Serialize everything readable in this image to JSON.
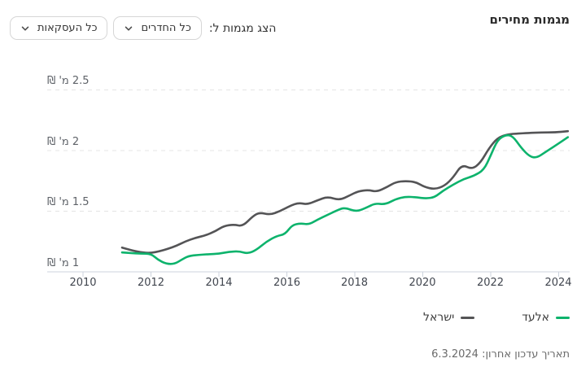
{
  "header": {
    "title": "מגמות מחירים"
  },
  "controls": {
    "label": "הצג מגמות ל:",
    "rooms_dropdown": {
      "value": "כל החדרים",
      "icon": "chevron-down-icon"
    },
    "transactions_dropdown": {
      "value": "כל העסקאות",
      "icon": "chevron-down-icon"
    }
  },
  "chart_data": {
    "type": "line",
    "title": "מגמות מחירים",
    "grid": "horizontal-dashed",
    "legend_position": "bottom-right",
    "x_range": [
      2009.05,
      2024.35
    ],
    "y_range": [
      1.0,
      2.5
    ],
    "x_ticks": [
      2010,
      2012,
      2014,
      2016,
      2018,
      2020,
      2022,
      2024
    ],
    "y_ticks": [
      {
        "label": "2.5 מ' ₪",
        "value": 2.5
      },
      {
        "label": "2 מ' ₪",
        "value": 2.0
      },
      {
        "label": "1.5 מ' ₪",
        "value": 1.5
      },
      {
        "label": "1 מ' ₪",
        "value": 1.0
      }
    ],
    "axis_color": "#ccd3dc",
    "gridline_color": "#e4e4e4",
    "series": [
      {
        "name": "אלעד",
        "color": "#0db36c",
        "points": [
          [
            2011.15,
            1.16
          ],
          [
            2011.4,
            1.155
          ],
          [
            2011.7,
            1.15
          ],
          [
            2012.0,
            1.15
          ],
          [
            2012.2,
            1.1
          ],
          [
            2012.45,
            1.065
          ],
          [
            2012.7,
            1.065
          ],
          [
            2012.9,
            1.1
          ],
          [
            2013.1,
            1.13
          ],
          [
            2013.4,
            1.14
          ],
          [
            2013.7,
            1.145
          ],
          [
            2014.0,
            1.15
          ],
          [
            2014.3,
            1.165
          ],
          [
            2014.6,
            1.17
          ],
          [
            2014.85,
            1.15
          ],
          [
            2015.1,
            1.18
          ],
          [
            2015.4,
            1.25
          ],
          [
            2015.7,
            1.295
          ],
          [
            2015.95,
            1.31
          ],
          [
            2016.15,
            1.385
          ],
          [
            2016.4,
            1.4
          ],
          [
            2016.65,
            1.39
          ],
          [
            2016.9,
            1.43
          ],
          [
            2017.2,
            1.47
          ],
          [
            2017.5,
            1.51
          ],
          [
            2017.7,
            1.53
          ],
          [
            2018.05,
            1.495
          ],
          [
            2018.35,
            1.53
          ],
          [
            2018.6,
            1.565
          ],
          [
            2018.9,
            1.555
          ],
          [
            2019.2,
            1.6
          ],
          [
            2019.5,
            1.62
          ],
          [
            2019.8,
            1.615
          ],
          [
            2020.1,
            1.605
          ],
          [
            2020.35,
            1.615
          ],
          [
            2020.6,
            1.67
          ],
          [
            2020.9,
            1.72
          ],
          [
            2021.2,
            1.765
          ],
          [
            2021.5,
            1.79
          ],
          [
            2021.8,
            1.84
          ],
          [
            2022.0,
            1.96
          ],
          [
            2022.2,
            2.09
          ],
          [
            2022.45,
            2.13
          ],
          [
            2022.65,
            2.12
          ],
          [
            2022.9,
            2.02
          ],
          [
            2023.15,
            1.95
          ],
          [
            2023.35,
            1.94
          ],
          [
            2023.6,
            1.985
          ],
          [
            2023.9,
            2.04
          ],
          [
            2024.27,
            2.11
          ]
        ]
      },
      {
        "name": "ישראל",
        "color": "#545456",
        "points": [
          [
            2011.15,
            1.2
          ],
          [
            2011.4,
            1.18
          ],
          [
            2011.7,
            1.16
          ],
          [
            2012.0,
            1.155
          ],
          [
            2012.25,
            1.17
          ],
          [
            2012.5,
            1.19
          ],
          [
            2012.75,
            1.215
          ],
          [
            2013.0,
            1.25
          ],
          [
            2013.3,
            1.28
          ],
          [
            2013.6,
            1.3
          ],
          [
            2013.9,
            1.335
          ],
          [
            2014.15,
            1.38
          ],
          [
            2014.45,
            1.39
          ],
          [
            2014.7,
            1.375
          ],
          [
            2015.0,
            1.46
          ],
          [
            2015.2,
            1.49
          ],
          [
            2015.5,
            1.47
          ],
          [
            2015.8,
            1.5
          ],
          [
            2016.1,
            1.545
          ],
          [
            2016.35,
            1.57
          ],
          [
            2016.6,
            1.555
          ],
          [
            2016.9,
            1.59
          ],
          [
            2017.2,
            1.62
          ],
          [
            2017.55,
            1.59
          ],
          [
            2017.85,
            1.63
          ],
          [
            2018.1,
            1.665
          ],
          [
            2018.4,
            1.675
          ],
          [
            2018.65,
            1.66
          ],
          [
            2018.95,
            1.7
          ],
          [
            2019.2,
            1.74
          ],
          [
            2019.5,
            1.75
          ],
          [
            2019.8,
            1.74
          ],
          [
            2020.05,
            1.7
          ],
          [
            2020.35,
            1.68
          ],
          [
            2020.65,
            1.71
          ],
          [
            2020.9,
            1.78
          ],
          [
            2021.15,
            1.885
          ],
          [
            2021.45,
            1.845
          ],
          [
            2021.7,
            1.9
          ],
          [
            2021.95,
            2.02
          ],
          [
            2022.2,
            2.105
          ],
          [
            2022.5,
            2.135
          ],
          [
            2022.8,
            2.14
          ],
          [
            2023.1,
            2.145
          ],
          [
            2023.5,
            2.15
          ],
          [
            2023.9,
            2.15
          ],
          [
            2024.27,
            2.16
          ]
        ]
      }
    ]
  },
  "footer": {
    "last_update": "תאריך עדכון אחרון: 6.3.2024"
  }
}
